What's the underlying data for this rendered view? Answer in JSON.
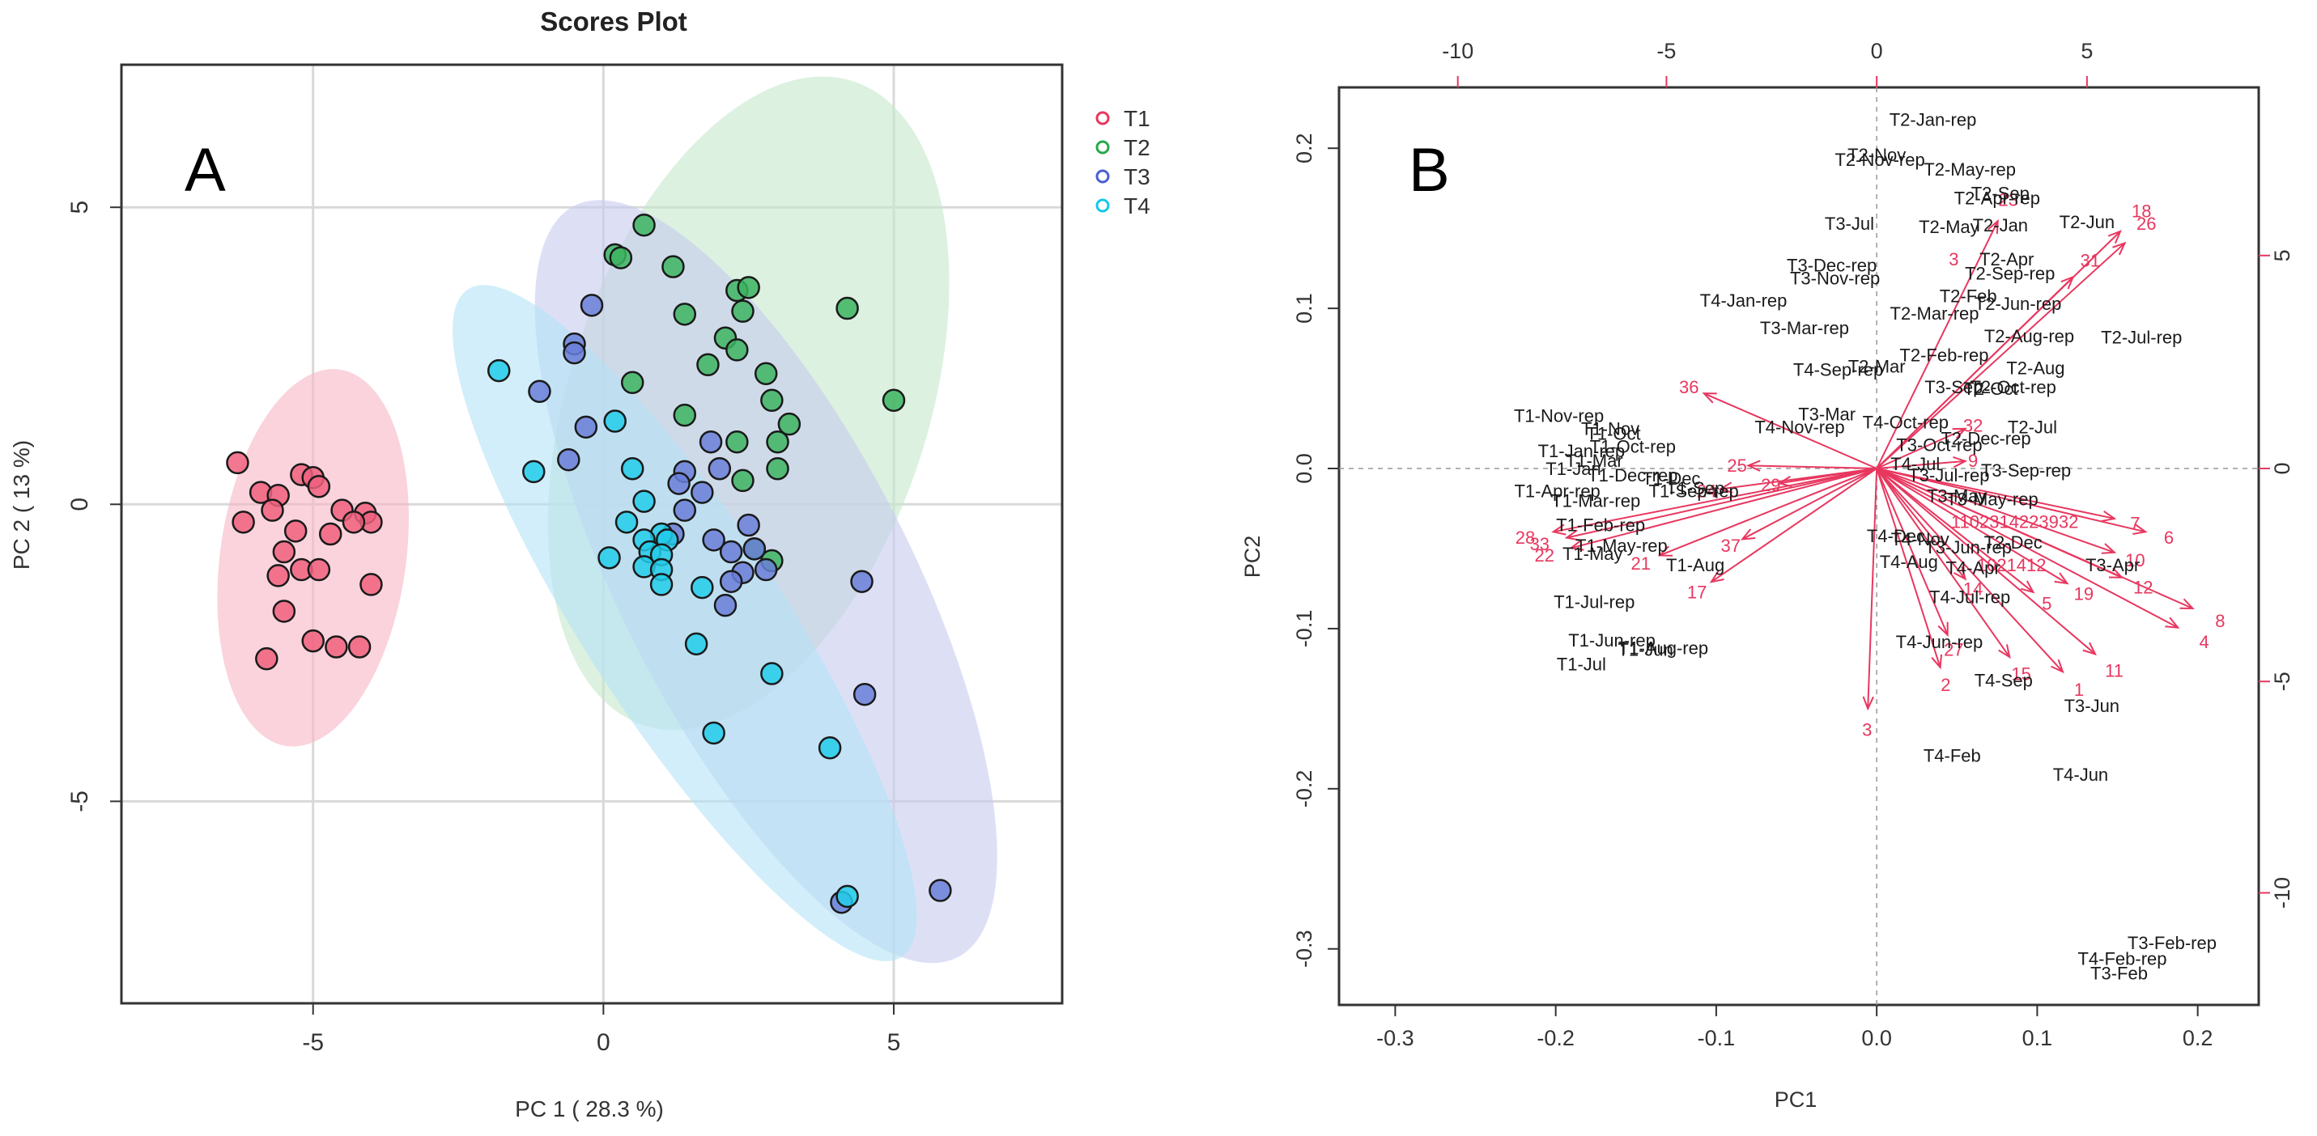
{
  "chart_data": [
    {
      "panel_label": "A",
      "type": "scatter",
      "title": "Scores Plot",
      "xlabel": "PC 1 ( 28.3 %)",
      "ylabel": "PC 2 ( 13 %)",
      "xlim": [
        -8.3,
        7.9
      ],
      "ylim": [
        -8.4,
        7.4
      ],
      "xticks": [
        -5,
        0,
        5
      ],
      "yticks": [
        -5,
        0,
        5
      ],
      "xtick_labels": [
        "-5",
        "0",
        "5"
      ],
      "ytick_labels": [
        "-5",
        "0",
        "5"
      ],
      "grid": true,
      "legend_position": "top-right",
      "series": [
        {
          "name": "T1",
          "color": "#e8375f",
          "fill": "#f0607e",
          "ellipse": {
            "cx": -5.0,
            "cy": -0.9,
            "rx": 1.6,
            "ry": 3.2,
            "angle": 8,
            "color": "#f7b5c5"
          },
          "points": [
            [
              -6.3,
              0.7
            ],
            [
              -5.9,
              0.2
            ],
            [
              -5.6,
              0.15
            ],
            [
              -5.2,
              0.5
            ],
            [
              -5.0,
              0.45
            ],
            [
              -4.9,
              0.3
            ],
            [
              -4.5,
              -0.1
            ],
            [
              -4.1,
              -0.15
            ],
            [
              -4.0,
              -0.3
            ],
            [
              -4.3,
              -0.3
            ],
            [
              -4.7,
              -0.5
            ],
            [
              -5.3,
              -0.45
            ],
            [
              -5.7,
              -0.1
            ],
            [
              -6.2,
              -0.3
            ],
            [
              -5.5,
              -0.8
            ],
            [
              -5.2,
              -1.1
            ],
            [
              -4.9,
              -1.1
            ],
            [
              -5.6,
              -1.2
            ],
            [
              -4.0,
              -1.35
            ],
            [
              -5.5,
              -1.8
            ],
            [
              -5.0,
              -2.3
            ],
            [
              -4.6,
              -2.4
            ],
            [
              -4.2,
              -2.4
            ],
            [
              -5.8,
              -2.6
            ]
          ]
        },
        {
          "name": "T2",
          "color": "#27a84a",
          "fill": "#3cb460",
          "ellipse": {
            "cx": 2.5,
            "cy": 1.7,
            "rx": 3.1,
            "ry": 5.7,
            "angle": 18,
            "color": "#c4e8cc"
          },
          "points": [
            [
              0.7,
              4.7
            ],
            [
              0.2,
              4.2
            ],
            [
              0.3,
              4.15
            ],
            [
              1.2,
              4.0
            ],
            [
              2.3,
              3.6
            ],
            [
              2.5,
              3.65
            ],
            [
              2.4,
              3.25
            ],
            [
              1.4,
              3.2
            ],
            [
              4.2,
              3.3
            ],
            [
              2.1,
              2.8
            ],
            [
              2.3,
              2.6
            ],
            [
              1.8,
              2.35
            ],
            [
              2.8,
              2.2
            ],
            [
              0.5,
              2.05
            ],
            [
              2.9,
              1.75
            ],
            [
              5.0,
              1.75
            ],
            [
              1.4,
              1.5
            ],
            [
              3.2,
              1.35
            ],
            [
              2.3,
              1.05
            ],
            [
              3.0,
              1.05
            ],
            [
              3.0,
              0.6
            ],
            [
              2.4,
              0.4
            ],
            [
              2.9,
              -0.95
            ],
            [
              2.6,
              -0.75
            ]
          ]
        },
        {
          "name": "T3",
          "color": "#4a5fcf",
          "fill": "#6a7fd8",
          "ellipse": {
            "cx": 2.8,
            "cy": -1.3,
            "rx": 2.5,
            "ry": 7.1,
            "angle": -27,
            "color": "#c6cbee"
          },
          "points": [
            [
              -0.2,
              3.35
            ],
            [
              -0.5,
              2.7
            ],
            [
              -0.5,
              2.55
            ],
            [
              -1.1,
              1.9
            ],
            [
              -0.3,
              1.3
            ],
            [
              -0.6,
              0.75
            ],
            [
              1.4,
              0.55
            ],
            [
              1.3,
              0.35
            ],
            [
              1.85,
              1.05
            ],
            [
              2.0,
              0.6
            ],
            [
              1.7,
              0.2
            ],
            [
              1.4,
              -0.1
            ],
            [
              1.2,
              -0.5
            ],
            [
              2.5,
              -0.35
            ],
            [
              1.9,
              -0.6
            ],
            [
              2.2,
              -0.8
            ],
            [
              2.6,
              -0.75
            ],
            [
              2.4,
              -1.15
            ],
            [
              2.2,
              -1.3
            ],
            [
              2.8,
              -1.1
            ],
            [
              2.1,
              -1.7
            ],
            [
              4.45,
              -1.3
            ],
            [
              4.5,
              -3.2
            ],
            [
              5.8,
              -6.5
            ],
            [
              4.1,
              -6.7
            ]
          ]
        },
        {
          "name": "T4",
          "color": "#12c9e8",
          "fill": "#22cdea",
          "ellipse": {
            "cx": 1.4,
            "cy": -2.0,
            "rx": 1.7,
            "ry": 6.7,
            "angle": -33,
            "color": "#b4e3f6"
          },
          "points": [
            [
              -1.8,
              2.25
            ],
            [
              0.2,
              1.4
            ],
            [
              -1.2,
              0.55
            ],
            [
              0.5,
              0.6
            ],
            [
              0.7,
              0.05
            ],
            [
              0.4,
              -0.3
            ],
            [
              1.0,
              -0.5
            ],
            [
              0.7,
              -0.6
            ],
            [
              1.1,
              -0.6
            ],
            [
              0.8,
              -0.8
            ],
            [
              1.0,
              -0.85
            ],
            [
              0.1,
              -0.9
            ],
            [
              0.7,
              -1.05
            ],
            [
              1.0,
              -1.1
            ],
            [
              1.7,
              -1.4
            ],
            [
              1.0,
              -1.35
            ],
            [
              2.9,
              -2.85
            ],
            [
              1.6,
              -2.35
            ],
            [
              1.9,
              -3.85
            ],
            [
              3.9,
              -4.1
            ],
            [
              4.2,
              -6.6
            ]
          ]
        }
      ]
    },
    {
      "panel_label": "B",
      "type": "scatter",
      "subtype": "biplot",
      "xlabel": "PC1",
      "ylabel": "PC2",
      "xlim": [
        -0.335,
        0.238
      ],
      "ylim": [
        -0.335,
        0.238
      ],
      "bottom_ticks": [
        "-0.3",
        "-0.2",
        "-0.1",
        "0.0",
        "0.1",
        "0.2"
      ],
      "bottom_tick_values": [
        -0.3,
        -0.2,
        -0.1,
        0.0,
        0.1,
        0.2
      ],
      "left_ticks": [
        "-0.3",
        "-0.2",
        "-0.1",
        "0.0",
        "0.1",
        "0.2"
      ],
      "left_tick_values": [
        -0.3,
        -0.2,
        -0.1,
        0.0,
        0.1,
        0.2
      ],
      "top_ticks": [
        "-10",
        "-5",
        "0",
        "5"
      ],
      "top_tick_values": [
        -0.261,
        -0.131,
        0.0,
        0.131
      ],
      "right_ticks": [
        "-10",
        "-5",
        "0",
        "5"
      ],
      "right_tick_values": [
        -0.265,
        -0.133,
        0.0,
        0.133
      ],
      "label_color": "#1a1a1a",
      "loading_color": "#e8375f",
      "score_labels": [
        {
          "text": "T2-Jan-rep",
          "x": 0.035,
          "y": 0.218
        },
        {
          "text": "T2-Nov",
          "x": 0.0,
          "y": 0.196
        },
        {
          "text": "T2-Nov-rep",
          "x": 0.002,
          "y": 0.193
        },
        {
          "text": "T2-May-rep",
          "x": 0.058,
          "y": 0.187
        },
        {
          "text": "T2-Apr-rep",
          "x": 0.075,
          "y": 0.169
        },
        {
          "text": "T2-Sep",
          "x": 0.077,
          "y": 0.172
        },
        {
          "text": "T3-Jul",
          "x": -0.017,
          "y": 0.153
        },
        {
          "text": "T2-May",
          "x": 0.045,
          "y": 0.151
        },
        {
          "text": "T2-Jan",
          "x": 0.077,
          "y": 0.152
        },
        {
          "text": "T2-Jun",
          "x": 0.131,
          "y": 0.154
        },
        {
          "text": "T2-Apr",
          "x": 0.081,
          "y": 0.131
        },
        {
          "text": "T3-Dec-rep",
          "x": -0.028,
          "y": 0.127
        },
        {
          "text": "T3-Nov-rep",
          "x": -0.026,
          "y": 0.119
        },
        {
          "text": "T2-Sep-rep",
          "x": 0.083,
          "y": 0.122
        },
        {
          "text": "T2-Feb",
          "x": 0.057,
          "y": 0.108
        },
        {
          "text": "T4-Jan-rep",
          "x": -0.083,
          "y": 0.105
        },
        {
          "text": "T2-Jun-rep",
          "x": 0.088,
          "y": 0.103
        },
        {
          "text": "T2-Mar-rep",
          "x": 0.036,
          "y": 0.097
        },
        {
          "text": "T3-Mar-rep",
          "x": -0.045,
          "y": 0.088
        },
        {
          "text": "T2-Aug-rep",
          "x": 0.095,
          "y": 0.083
        },
        {
          "text": "T2-Jul-rep",
          "x": 0.165,
          "y": 0.082
        },
        {
          "text": "T2-Feb-rep",
          "x": 0.042,
          "y": 0.071
        },
        {
          "text": "T4-Sep-rep",
          "x": -0.024,
          "y": 0.062
        },
        {
          "text": "T2-Mar",
          "x": 0.0,
          "y": 0.064
        },
        {
          "text": "T2-Aug",
          "x": 0.099,
          "y": 0.063
        },
        {
          "text": "T3-Sep",
          "x": 0.048,
          "y": 0.051
        },
        {
          "text": "T2-Oct-rep",
          "x": 0.085,
          "y": 0.051
        },
        {
          "text": "T2-Oct",
          "x": 0.071,
          "y": 0.05
        },
        {
          "text": "T3-Mar",
          "x": -0.031,
          "y": 0.034
        },
        {
          "text": "T4-Nov-rep",
          "x": -0.048,
          "y": 0.026
        },
        {
          "text": "T4-Oct-rep",
          "x": 0.018,
          "y": 0.029
        },
        {
          "text": "T2-Jul",
          "x": 0.097,
          "y": 0.026
        },
        {
          "text": "T3-Oct-rep",
          "x": 0.039,
          "y": 0.015
        },
        {
          "text": "T2-Dec-rep",
          "x": 0.068,
          "y": 0.019
        },
        {
          "text": "T4-Jul",
          "x": 0.024,
          "y": 0.003
        },
        {
          "text": "T3-Jul-rep",
          "x": 0.045,
          "y": -0.004
        },
        {
          "text": "T3-Sep-rep",
          "x": 0.093,
          "y": -0.001
        },
        {
          "text": "T3-May-rep",
          "x": 0.072,
          "y": -0.019
        },
        {
          "text": "T3-May",
          "x": 0.05,
          "y": -0.017
        },
        {
          "text": "T4-Dec",
          "x": 0.012,
          "y": -0.042
        },
        {
          "text": "T4-Nov",
          "x": 0.027,
          "y": -0.044
        },
        {
          "text": "T3-Jun-rep",
          "x": 0.057,
          "y": -0.049
        },
        {
          "text": "T2-Dec",
          "x": 0.085,
          "y": -0.046
        },
        {
          "text": "T4-Aug",
          "x": 0.02,
          "y": -0.058
        },
        {
          "text": "T4-Apr",
          "x": 0.06,
          "y": -0.062
        },
        {
          "text": "T3-Apr",
          "x": 0.147,
          "y": -0.06
        },
        {
          "text": "T4-Jul-rep",
          "x": 0.058,
          "y": -0.08
        },
        {
          "text": "T4-Jun-rep",
          "x": 0.039,
          "y": -0.108
        },
        {
          "text": "T4-Sep",
          "x": 0.079,
          "y": -0.132
        },
        {
          "text": "T3-Jun",
          "x": 0.134,
          "y": -0.148
        },
        {
          "text": "T4-Feb",
          "x": 0.047,
          "y": -0.179
        },
        {
          "text": "T4-Jun",
          "x": 0.127,
          "y": -0.191
        },
        {
          "text": "T3-Feb-rep",
          "x": 0.184,
          "y": -0.296
        },
        {
          "text": "T4-Feb-rep",
          "x": 0.153,
          "y": -0.306
        },
        {
          "text": "T3-Feb",
          "x": 0.151,
          "y": -0.315
        },
        {
          "text": "T1-Nov-rep",
          "x": -0.198,
          "y": 0.033
        },
        {
          "text": "T1-Nov",
          "x": -0.166,
          "y": 0.025
        },
        {
          "text": "T1-Oct",
          "x": -0.164,
          "y": 0.022
        },
        {
          "text": "T1-Jan-rep",
          "x": -0.184,
          "y": 0.011
        },
        {
          "text": "T1-Oct-rep",
          "x": -0.152,
          "y": 0.014
        },
        {
          "text": "T1-Mar",
          "x": -0.176,
          "y": 0.005
        },
        {
          "text": "T1-Jan",
          "x": -0.189,
          "y": 0.0
        },
        {
          "text": "T1-Dec-rep",
          "x": -0.152,
          "y": -0.004
        },
        {
          "text": "T1-Dec",
          "x": -0.128,
          "y": -0.006
        },
        {
          "text": "T1-Sep",
          "x": -0.113,
          "y": -0.012
        },
        {
          "text": "T1-Apr-rep",
          "x": -0.199,
          "y": -0.014
        },
        {
          "text": "T1-Mar-rep",
          "x": -0.175,
          "y": -0.02
        },
        {
          "text": "T1-Sep-rep",
          "x": -0.114,
          "y": -0.014
        },
        {
          "text": "T1-Feb-rep",
          "x": -0.172,
          "y": -0.035
        },
        {
          "text": "T1-May-rep",
          "x": -0.159,
          "y": -0.048
        },
        {
          "text": "T1-May",
          "x": -0.177,
          "y": -0.053
        },
        {
          "text": "T1-Aug",
          "x": -0.113,
          "y": -0.06
        },
        {
          "text": "T1-Jul-rep",
          "x": -0.176,
          "y": -0.083
        },
        {
          "text": "T1-Jun-rep",
          "x": -0.165,
          "y": -0.107
        },
        {
          "text": "T1-Aug-rep",
          "x": -0.133,
          "y": -0.112
        },
        {
          "text": "T1-Jun",
          "x": -0.144,
          "y": -0.113
        },
        {
          "text": "T1-Jul",
          "x": -0.184,
          "y": -0.122
        }
      ],
      "loadings": [
        {
          "label": "23",
          "x": 0.082,
          "y": 0.168
        },
        {
          "label": "18",
          "x": 0.165,
          "y": 0.161
        },
        {
          "label": "26",
          "x": 0.168,
          "y": 0.153
        },
        {
          "label": "31",
          "x": 0.133,
          "y": 0.13
        },
        {
          "label": "36",
          "x": -0.117,
          "y": 0.051
        },
        {
          "label": "25",
          "x": -0.087,
          "y": 0.002
        },
        {
          "label": "29",
          "x": -0.066,
          "y": -0.01
        },
        {
          "label": "24",
          "x": -0.106,
          "y": -0.014
        },
        {
          "label": "9",
          "x": 0.06,
          "y": 0.005
        },
        {
          "label": "28",
          "x": -0.219,
          "y": -0.043
        },
        {
          "label": "33",
          "x": -0.21,
          "y": -0.047
        },
        {
          "label": "22",
          "x": -0.207,
          "y": -0.054
        },
        {
          "label": "21",
          "x": -0.147,
          "y": -0.059
        },
        {
          "label": "37",
          "x": -0.091,
          "y": -0.048
        },
        {
          "label": "17",
          "x": -0.112,
          "y": -0.077
        },
        {
          "label": "7",
          "x": 0.161,
          "y": -0.034
        },
        {
          "label": "6",
          "x": 0.182,
          "y": -0.043
        },
        {
          "label": "10",
          "x": 0.161,
          "y": -0.057
        },
        {
          "label": "12",
          "x": 0.166,
          "y": -0.074
        },
        {
          "label": "19",
          "x": 0.129,
          "y": -0.078
        },
        {
          "label": "5",
          "x": 0.106,
          "y": -0.084
        },
        {
          "label": "8",
          "x": 0.214,
          "y": -0.095
        },
        {
          "label": "4",
          "x": 0.204,
          "y": -0.108
        },
        {
          "label": "11",
          "x": 0.148,
          "y": -0.126
        },
        {
          "label": "1",
          "x": 0.126,
          "y": -0.138
        },
        {
          "label": "15",
          "x": 0.09,
          "y": -0.128
        },
        {
          "label": "27",
          "x": 0.048,
          "y": -0.113
        },
        {
          "label": "2",
          "x": 0.043,
          "y": -0.135
        },
        {
          "label": "3",
          "x": -0.006,
          "y": -0.163
        },
        {
          "label": "14",
          "x": 0.06,
          "y": -0.075
        },
        {
          "label": "32",
          "x": 0.06,
          "y": 0.027
        }
      ],
      "overlap_labels": [
        {
          "text": "1102314223932",
          "x": 0.086,
          "y": -0.033
        },
        {
          "text": "1021412",
          "x": 0.084,
          "y": -0.06
        },
        {
          "text": "3",
          "x": 0.048,
          "y": 0.131
        }
      ]
    }
  ]
}
